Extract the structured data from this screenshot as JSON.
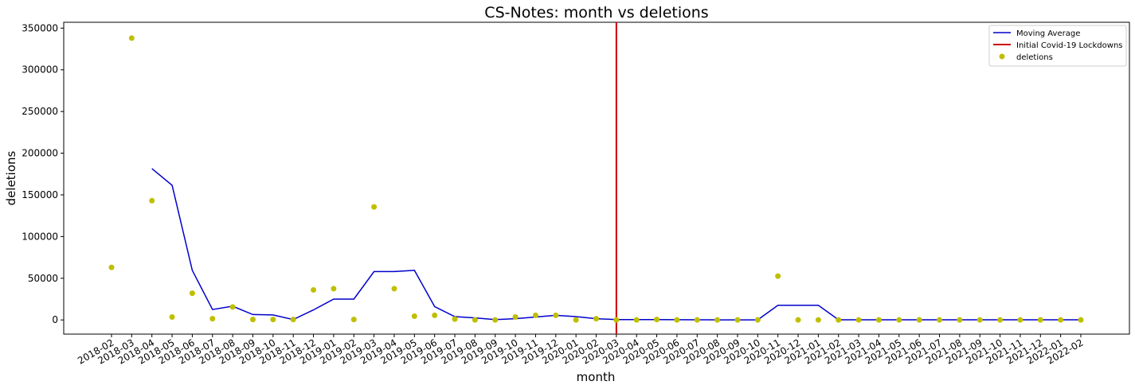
{
  "chart_data": {
    "type": "line",
    "title": "CS-Notes: month vs deletions",
    "xlabel": "month",
    "ylabel": "deletions",
    "ylim": [
      -17000,
      357000
    ],
    "yticks": [
      0,
      50000,
      100000,
      150000,
      200000,
      250000,
      300000,
      350000
    ],
    "grid": false,
    "legend_position": "top-right",
    "categories": [
      "2018-02",
      "2018-03",
      "2018-04",
      "2018-05",
      "2018-06",
      "2018-07",
      "2018-08",
      "2018-09",
      "2018-10",
      "2018-11",
      "2018-12",
      "2019-01",
      "2019-02",
      "2019-03",
      "2019-04",
      "2019-05",
      "2019-06",
      "2019-07",
      "2019-08",
      "2019-09",
      "2019-10",
      "2019-11",
      "2019-12",
      "2020-01",
      "2020-02",
      "2020-03",
      "2020-04",
      "2020-05",
      "2020-06",
      "2020-07",
      "2020-08",
      "2020-09",
      "2020-10",
      "2020-11",
      "2020-12",
      "2021-01",
      "2021-02",
      "2021-03",
      "2021-04",
      "2021-05",
      "2021-06",
      "2021-07",
      "2021-08",
      "2021-09",
      "2021-10",
      "2021-11",
      "2021-12",
      "2022-01",
      "2022-02"
    ],
    "series": [
      {
        "name": "Moving Average",
        "type": "line",
        "color": "#0000cc",
        "values": [
          null,
          null,
          181500,
          161500,
          59500,
          12500,
          16500,
          6500,
          6000,
          500,
          12000,
          25000,
          25000,
          58000,
          58000,
          59500,
          16000,
          4000,
          2500,
          500,
          1500,
          3500,
          5500,
          4000,
          1500,
          500,
          500,
          400,
          300,
          200,
          100,
          100,
          100,
          17500,
          17500,
          17500,
          200,
          200,
          200,
          200,
          200,
          200,
          200,
          200,
          200,
          200,
          200,
          200,
          200
        ]
      },
      {
        "name": "deletions",
        "type": "scatter",
        "color": "#bfbf00",
        "values": [
          63000,
          338000,
          143000,
          3500,
          32000,
          1500,
          15500,
          500,
          500,
          500,
          36000,
          37500,
          500,
          135500,
          37500,
          4500,
          5500,
          1000,
          0,
          0,
          3500,
          5500,
          5500,
          0,
          1500,
          0,
          0,
          500,
          0,
          0,
          0,
          0,
          0,
          52500,
          0,
          0,
          0,
          0,
          0,
          0,
          0,
          0,
          0,
          0,
          0,
          0,
          0,
          0,
          0
        ]
      }
    ],
    "vertical_lines": [
      {
        "name": "Initial Covid-19 Lockdowns",
        "x": "2020-03",
        "color": "#cc0000"
      }
    ]
  }
}
